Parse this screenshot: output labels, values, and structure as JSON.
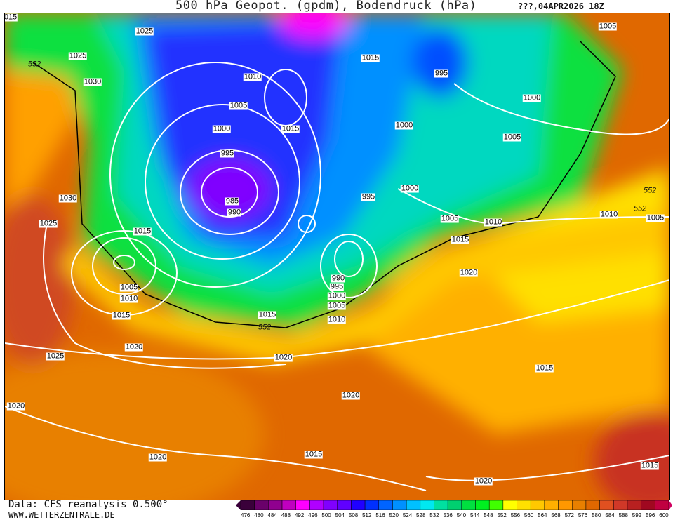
{
  "header": {
    "title": "500 hPa Geopot. (gpdm), Bodendruck (hPa)",
    "run": "???,04APR2026 18Z"
  },
  "footer": {
    "source": "Data: CFS reanalysis 0.500°",
    "website": "WWW.WETTERZENTRALE.DE"
  },
  "legend": {
    "unit": "gpdm",
    "values": [
      476,
      480,
      484,
      488,
      492,
      496,
      500,
      504,
      508,
      512,
      516,
      520,
      524,
      528,
      532,
      536,
      540,
      544,
      548,
      552,
      556,
      560,
      564,
      568,
      572,
      576,
      580,
      584,
      588,
      592,
      596,
      600
    ],
    "colors": [
      "#3a003a",
      "#6a006a",
      "#90008f",
      "#c000c0",
      "#ff00ff",
      "#b000ff",
      "#8000ff",
      "#6000ff",
      "#2000ff",
      "#0030ff",
      "#0064ff",
      "#0090ff",
      "#00c0ff",
      "#00e8f0",
      "#00e0a0",
      "#00d070",
      "#00e040",
      "#00f020",
      "#40ff00",
      "#ffff00",
      "#ffe000",
      "#ffc800",
      "#ffb000",
      "#ff9800",
      "#e88000",
      "#e06800",
      "#e05020",
      "#d03828",
      "#b82020",
      "#a00820",
      "#c00040"
    ]
  },
  "map": {
    "isobar_labels": [
      "015",
      "552",
      "1025",
      "1025",
      "1030",
      "1030",
      "1025",
      "1015",
      "1005",
      "1010",
      "1015",
      "1020",
      "1025",
      "1020",
      "1020",
      "1015",
      "1020",
      "1015",
      "1020",
      "1020",
      "1010",
      "1015",
      "552",
      "1005",
      "1000",
      "995",
      "990",
      "1010",
      "1005",
      "1000",
      "995",
      "985",
      "990",
      "1015",
      "1015",
      "995",
      "1000",
      "995",
      "1000",
      "1005",
      "1010",
      "1015",
      "1020",
      "1005",
      "1000",
      "1005",
      "552",
      "552",
      "1010",
      "1005",
      "1015"
    ]
  }
}
